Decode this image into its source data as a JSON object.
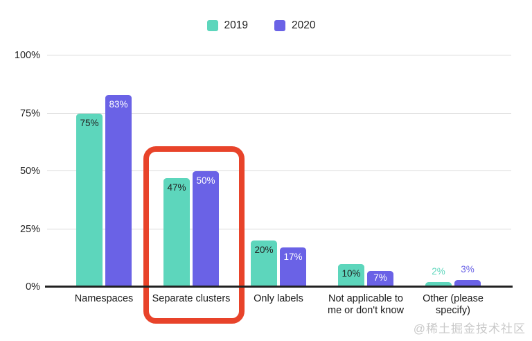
{
  "colors": {
    "series_2019": "#5dd6bc",
    "series_2020": "#6a62e6",
    "highlight": "#e8432a",
    "grid": "#dadada",
    "axis": "#212121",
    "watermark": "#c9c9c9"
  },
  "legend": {
    "items": [
      {
        "label": "2019",
        "color": "#5dd6bc"
      },
      {
        "label": "2020",
        "color": "#6a62e6"
      }
    ]
  },
  "chart_data": {
    "type": "bar",
    "title": "",
    "xlabel": "",
    "ylabel": "",
    "categories": [
      "Namespaces",
      "Separate clusters",
      "Only labels",
      "Not applicable to me or don't know",
      "Other (please specify)"
    ],
    "series": [
      {
        "name": "2019",
        "color": "#5dd6bc",
        "inside_label_color": "#212121",
        "values": [
          75,
          47,
          20,
          10,
          2
        ]
      },
      {
        "name": "2020",
        "color": "#6a62e6",
        "inside_label_color": "#ffffff",
        "values": [
          83,
          50,
          17,
          7,
          3
        ]
      }
    ],
    "value_label_format": "{v}%",
    "value_label_outside_threshold": 5,
    "ylim": [
      0,
      100
    ],
    "yticks": [
      0,
      25,
      50,
      75,
      100
    ],
    "ytick_labels": [
      "0%",
      "25%",
      "50%",
      "75%",
      "100%"
    ],
    "grid": true,
    "legend_position": "top",
    "highlight": {
      "category": "Separate clusters",
      "shape": "rounded-rect",
      "color": "#e8432a"
    }
  },
  "watermark": {
    "text": "@稀土掘金技术社区"
  }
}
